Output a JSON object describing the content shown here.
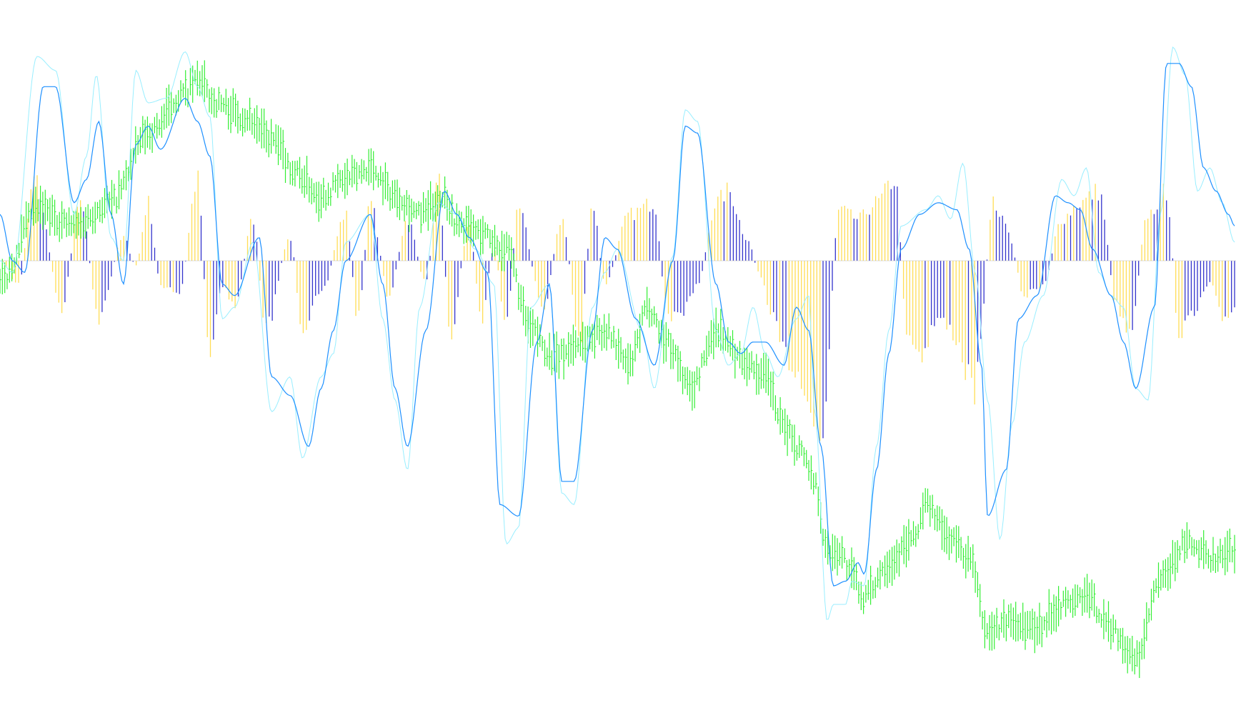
{
  "chart_data": {
    "type": "line",
    "title": "",
    "xlabel": "",
    "ylabel": "",
    "x_range": [
      0,
      1
    ],
    "y_range": [
      -1.8,
      1.0
    ],
    "grid": false,
    "legend": "none",
    "zero_line": 0,
    "colors": {
      "price": "#33ee33",
      "fast": "#99eeff",
      "slow": "#1e90ff",
      "hist_pos": "#ffdd55",
      "hist_neg": "#3333cc"
    },
    "series": [
      {
        "role": "price",
        "style": "ohlc-bars",
        "anchors": [
          [
            0.0,
            -0.1
          ],
          [
            0.03,
            0.22
          ],
          [
            0.06,
            0.15
          ],
          [
            0.09,
            0.25
          ],
          [
            0.12,
            0.55
          ],
          [
            0.15,
            0.72
          ],
          [
            0.16,
            0.78
          ],
          [
            0.175,
            0.68
          ],
          [
            0.2,
            0.62
          ],
          [
            0.22,
            0.52
          ],
          [
            0.24,
            0.38
          ],
          [
            0.26,
            0.28
          ],
          [
            0.28,
            0.35
          ],
          [
            0.3,
            0.4
          ],
          [
            0.32,
            0.28
          ],
          [
            0.34,
            0.2
          ],
          [
            0.36,
            0.28
          ],
          [
            0.37,
            0.16
          ],
          [
            0.39,
            0.12
          ],
          [
            0.41,
            0.05
          ],
          [
            0.43,
            -0.3
          ],
          [
            0.45,
            -0.42
          ],
          [
            0.47,
            -0.35
          ],
          [
            0.49,
            -0.3
          ],
          [
            0.51,
            -0.45
          ],
          [
            0.525,
            -0.2
          ],
          [
            0.54,
            -0.35
          ],
          [
            0.56,
            -0.55
          ],
          [
            0.58,
            -0.3
          ],
          [
            0.6,
            -0.42
          ],
          [
            0.62,
            -0.5
          ],
          [
            0.635,
            -0.72
          ],
          [
            0.65,
            -0.82
          ],
          [
            0.66,
            -0.95
          ],
          [
            0.67,
            -1.25
          ],
          [
            0.68,
            -1.25
          ],
          [
            0.69,
            -1.35
          ],
          [
            0.7,
            -1.45
          ],
          [
            0.72,
            -1.3
          ],
          [
            0.74,
            -1.2
          ],
          [
            0.75,
            -1.05
          ],
          [
            0.77,
            -1.2
          ],
          [
            0.785,
            -1.28
          ],
          [
            0.8,
            -1.6
          ],
          [
            0.82,
            -1.55
          ],
          [
            0.84,
            -1.58
          ],
          [
            0.86,
            -1.48
          ],
          [
            0.88,
            -1.45
          ],
          [
            0.9,
            -1.58
          ],
          [
            0.92,
            -1.72
          ],
          [
            0.94,
            -1.38
          ],
          [
            0.96,
            -1.22
          ],
          [
            0.98,
            -1.28
          ],
          [
            1.0,
            -1.25
          ]
        ]
      },
      {
        "role": "fast",
        "style": "line",
        "anchors": [
          [
            0.0,
            0.0
          ],
          [
            0.01,
            -0.05
          ],
          [
            0.03,
            0.88
          ],
          [
            0.045,
            0.82
          ],
          [
            0.06,
            0.2
          ],
          [
            0.07,
            0.45
          ],
          [
            0.078,
            0.8
          ],
          [
            0.09,
            0.1
          ],
          [
            0.1,
            0.0
          ],
          [
            0.11,
            0.82
          ],
          [
            0.12,
            0.68
          ],
          [
            0.135,
            0.7
          ],
          [
            0.15,
            0.9
          ],
          [
            0.16,
            0.75
          ],
          [
            0.17,
            0.62
          ],
          [
            0.18,
            -0.25
          ],
          [
            0.19,
            -0.2
          ],
          [
            0.205,
            0.08
          ],
          [
            0.22,
            -0.65
          ],
          [
            0.235,
            -0.5
          ],
          [
            0.245,
            -0.85
          ],
          [
            0.26,
            -0.5
          ],
          [
            0.27,
            -0.4
          ],
          [
            0.28,
            0.08
          ],
          [
            0.3,
            0.2
          ],
          [
            0.31,
            -0.25
          ],
          [
            0.32,
            -0.6
          ],
          [
            0.33,
            -0.9
          ],
          [
            0.34,
            -0.2
          ],
          [
            0.355,
            0.25
          ],
          [
            0.37,
            0.2
          ],
          [
            0.385,
            0.05
          ],
          [
            0.4,
            -0.1
          ],
          [
            0.41,
            -1.22
          ],
          [
            0.42,
            -1.15
          ],
          [
            0.43,
            -0.2
          ],
          [
            0.445,
            -0.1
          ],
          [
            0.455,
            -1.0
          ],
          [
            0.465,
            -1.05
          ],
          [
            0.48,
            -0.2
          ],
          [
            0.49,
            -0.05
          ],
          [
            0.5,
            0.05
          ],
          [
            0.52,
            -0.3
          ],
          [
            0.53,
            -0.55
          ],
          [
            0.545,
            0.02
          ],
          [
            0.555,
            0.65
          ],
          [
            0.565,
            0.6
          ],
          [
            0.58,
            -0.3
          ],
          [
            0.59,
            -0.45
          ],
          [
            0.6,
            -0.4
          ],
          [
            0.61,
            -0.2
          ],
          [
            0.62,
            -0.4
          ],
          [
            0.63,
            -0.5
          ],
          [
            0.645,
            -0.25
          ],
          [
            0.655,
            -0.15
          ],
          [
            0.66,
            -0.65
          ],
          [
            0.67,
            -1.55
          ],
          [
            0.675,
            -1.48
          ],
          [
            0.685,
            -1.48
          ],
          [
            0.69,
            -1.38
          ],
          [
            0.7,
            -1.4
          ],
          [
            0.71,
            -0.8
          ],
          [
            0.72,
            -0.3
          ],
          [
            0.73,
            0.15
          ],
          [
            0.75,
            0.22
          ],
          [
            0.76,
            0.28
          ],
          [
            0.77,
            0.18
          ],
          [
            0.78,
            0.42
          ],
          [
            0.79,
            -0.05
          ],
          [
            0.8,
            -0.6
          ],
          [
            0.81,
            -1.2
          ],
          [
            0.82,
            -0.7
          ],
          [
            0.83,
            -0.35
          ],
          [
            0.845,
            -0.15
          ],
          [
            0.86,
            0.35
          ],
          [
            0.87,
            0.28
          ],
          [
            0.88,
            0.4
          ],
          [
            0.89,
            -0.05
          ],
          [
            0.9,
            -0.15
          ],
          [
            0.91,
            -0.2
          ],
          [
            0.92,
            -0.55
          ],
          [
            0.93,
            -0.6
          ],
          [
            0.94,
            0.2
          ],
          [
            0.95,
            0.92
          ],
          [
            0.96,
            0.8
          ],
          [
            0.97,
            0.3
          ],
          [
            0.98,
            0.4
          ],
          [
            0.99,
            0.25
          ],
          [
            1.0,
            0.08
          ]
        ]
      },
      {
        "role": "slow",
        "style": "line",
        "anchors": [
          [
            0.0,
            0.2
          ],
          [
            0.01,
            0.0
          ],
          [
            0.02,
            -0.05
          ],
          [
            0.035,
            0.75
          ],
          [
            0.045,
            0.75
          ],
          [
            0.06,
            0.25
          ],
          [
            0.07,
            0.35
          ],
          [
            0.08,
            0.6
          ],
          [
            0.09,
            0.2
          ],
          [
            0.1,
            -0.1
          ],
          [
            0.11,
            0.5
          ],
          [
            0.12,
            0.58
          ],
          [
            0.13,
            0.48
          ],
          [
            0.15,
            0.7
          ],
          [
            0.16,
            0.6
          ],
          [
            0.17,
            0.45
          ],
          [
            0.18,
            -0.1
          ],
          [
            0.19,
            -0.15
          ],
          [
            0.21,
            0.1
          ],
          [
            0.22,
            -0.5
          ],
          [
            0.235,
            -0.58
          ],
          [
            0.25,
            -0.8
          ],
          [
            0.26,
            -0.55
          ],
          [
            0.27,
            -0.3
          ],
          [
            0.28,
            0.0
          ],
          [
            0.3,
            0.2
          ],
          [
            0.31,
            -0.1
          ],
          [
            0.32,
            -0.55
          ],
          [
            0.33,
            -0.8
          ],
          [
            0.345,
            -0.3
          ],
          [
            0.36,
            0.3
          ],
          [
            0.37,
            0.2
          ],
          [
            0.38,
            0.1
          ],
          [
            0.395,
            -0.05
          ],
          [
            0.405,
            -1.05
          ],
          [
            0.42,
            -1.1
          ],
          [
            0.435,
            -0.35
          ],
          [
            0.445,
            -0.1
          ],
          [
            0.455,
            -0.95
          ],
          [
            0.465,
            -0.95
          ],
          [
            0.48,
            -0.3
          ],
          [
            0.49,
            0.1
          ],
          [
            0.5,
            0.05
          ],
          [
            0.515,
            -0.25
          ],
          [
            0.53,
            -0.45
          ],
          [
            0.545,
            0.0
          ],
          [
            0.555,
            0.58
          ],
          [
            0.565,
            0.55
          ],
          [
            0.58,
            -0.1
          ],
          [
            0.59,
            -0.35
          ],
          [
            0.6,
            -0.4
          ],
          [
            0.61,
            -0.35
          ],
          [
            0.62,
            -0.35
          ],
          [
            0.635,
            -0.45
          ],
          [
            0.645,
            -0.2
          ],
          [
            0.655,
            -0.3
          ],
          [
            0.665,
            -0.8
          ],
          [
            0.675,
            -1.4
          ],
          [
            0.685,
            -1.38
          ],
          [
            0.695,
            -1.3
          ],
          [
            0.7,
            -1.35
          ],
          [
            0.71,
            -0.9
          ],
          [
            0.72,
            -0.4
          ],
          [
            0.73,
            0.05
          ],
          [
            0.745,
            0.2
          ],
          [
            0.76,
            0.25
          ],
          [
            0.775,
            0.22
          ],
          [
            0.785,
            0.05
          ],
          [
            0.795,
            -0.45
          ],
          [
            0.8,
            -1.1
          ],
          [
            0.815,
            -0.9
          ],
          [
            0.825,
            -0.25
          ],
          [
            0.84,
            -0.15
          ],
          [
            0.855,
            0.28
          ],
          [
            0.865,
            0.25
          ],
          [
            0.875,
            0.22
          ],
          [
            0.885,
            0.05
          ],
          [
            0.9,
            -0.15
          ],
          [
            0.91,
            -0.35
          ],
          [
            0.92,
            -0.55
          ],
          [
            0.935,
            -0.2
          ],
          [
            0.945,
            0.85
          ],
          [
            0.955,
            0.85
          ],
          [
            0.965,
            0.75
          ],
          [
            0.975,
            0.4
          ],
          [
            0.985,
            0.3
          ],
          [
            0.995,
            0.2
          ],
          [
            1.0,
            0.15
          ]
        ]
      },
      {
        "role": "histogram",
        "style": "bars",
        "anchors": [
          [
            0.0,
            0.0
          ],
          [
            0.015,
            -0.1
          ],
          [
            0.028,
            0.35
          ],
          [
            0.05,
            -0.2
          ],
          [
            0.065,
            0.25
          ],
          [
            0.08,
            -0.25
          ],
          [
            0.1,
            0.1
          ],
          [
            0.11,
            -0.02
          ],
          [
            0.12,
            0.25
          ],
          [
            0.13,
            -0.1
          ],
          [
            0.145,
            -0.15
          ],
          [
            0.16,
            0.35
          ],
          [
            0.17,
            -0.4
          ],
          [
            0.18,
            -0.1
          ],
          [
            0.19,
            -0.2
          ],
          [
            0.205,
            0.18
          ],
          [
            0.215,
            -0.3
          ],
          [
            0.235,
            0.1
          ],
          [
            0.245,
            -0.28
          ],
          [
            0.26,
            -0.15
          ],
          [
            0.28,
            0.2
          ],
          [
            0.29,
            -0.25
          ],
          [
            0.3,
            0.25
          ],
          [
            0.315,
            -0.15
          ],
          [
            0.33,
            0.18
          ],
          [
            0.345,
            -0.1
          ],
          [
            0.355,
            0.35
          ],
          [
            0.365,
            -0.3
          ],
          [
            0.38,
            0.15
          ],
          [
            0.39,
            -0.25
          ],
          [
            0.4,
            0.05
          ],
          [
            0.41,
            -0.28
          ],
          [
            0.42,
            0.22
          ],
          [
            0.44,
            -0.2
          ],
          [
            0.455,
            0.18
          ],
          [
            0.47,
            -0.35
          ],
          [
            0.48,
            0.25
          ],
          [
            0.49,
            -0.1
          ],
          [
            0.51,
            0.2
          ],
          [
            0.53,
            0.25
          ],
          [
            0.54,
            -0.22
          ],
          [
            0.55,
            -0.25
          ],
          [
            0.565,
            -0.1
          ],
          [
            0.58,
            0.25
          ],
          [
            0.59,
            0.3
          ],
          [
            0.605,
            0.1
          ],
          [
            0.615,
            -0.05
          ],
          [
            0.625,
            -0.25
          ],
          [
            0.635,
            -0.4
          ],
          [
            0.65,
            -0.5
          ],
          [
            0.665,
            -0.8
          ],
          [
            0.68,
            0.22
          ],
          [
            0.695,
            0.18
          ],
          [
            0.71,
            0.25
          ],
          [
            0.725,
            0.35
          ],
          [
            0.735,
            -0.3
          ],
          [
            0.745,
            -0.4
          ],
          [
            0.76,
            -0.25
          ],
          [
            0.77,
            -0.3
          ],
          [
            0.79,
            -0.55
          ],
          [
            0.805,
            0.25
          ],
          [
            0.815,
            0.15
          ],
          [
            0.83,
            -0.15
          ],
          [
            0.845,
            -0.1
          ],
          [
            0.86,
            0.18
          ],
          [
            0.875,
            0.25
          ],
          [
            0.89,
            0.3
          ],
          [
            0.905,
            -0.2
          ],
          [
            0.915,
            -0.3
          ],
          [
            0.93,
            0.2
          ],
          [
            0.945,
            0.3
          ],
          [
            0.955,
            -0.3
          ],
          [
            0.965,
            -0.25
          ],
          [
            0.98,
            -0.1
          ],
          [
            0.99,
            -0.25
          ],
          [
            1.0,
            -0.2
          ]
        ]
      }
    ]
  }
}
